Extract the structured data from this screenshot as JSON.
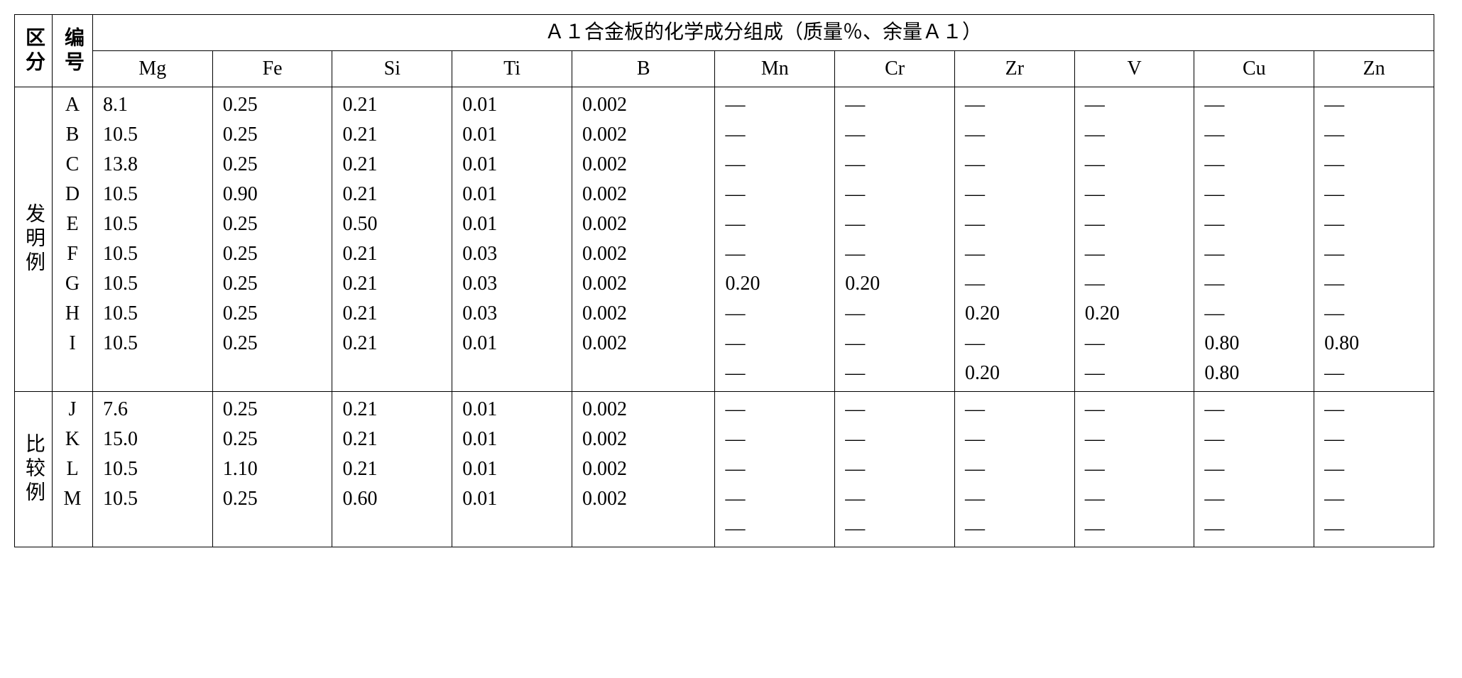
{
  "header": {
    "col1": "区分",
    "col2": "编号",
    "title": "Ａ１合金板的化学成分组成（质量％、余量Ａ１）",
    "subs": [
      "Mg",
      "Fe",
      "Si",
      "Ti",
      "B",
      "Mn",
      "Cr",
      "Zr",
      "V",
      "Cu",
      "Zn"
    ]
  },
  "groups": [
    {
      "label": "发明例",
      "rows": [
        {
          "id": "A",
          "cells": [
            "8.1",
            "0.25",
            "0.21",
            "0.01",
            "0.002",
            "—",
            "—",
            "—",
            "—",
            "—",
            "—"
          ]
        },
        {
          "id": "B",
          "cells": [
            "10.5",
            "0.25",
            "0.21",
            "0.01",
            "0.002",
            "—",
            "—",
            "—",
            "—",
            "—",
            "—"
          ]
        },
        {
          "id": "C",
          "cells": [
            "13.8",
            "0.25",
            "0.21",
            "0.01",
            "0.002",
            "—",
            "—",
            "—",
            "—",
            "—",
            "—"
          ]
        },
        {
          "id": "D",
          "cells": [
            "10.5",
            "0.90",
            "0.21",
            "0.01",
            "0.002",
            "—",
            "—",
            "—",
            "—",
            "—",
            "—"
          ]
        },
        {
          "id": "E",
          "cells": [
            "10.5",
            "0.25",
            "0.50",
            "0.01",
            "0.002",
            "—",
            "—",
            "—",
            "—",
            "—",
            "—"
          ]
        },
        {
          "id": "F",
          "cells": [
            "10.5",
            "0.25",
            "0.21",
            "0.03",
            "0.002",
            "—",
            "—",
            "—",
            "—",
            "—",
            "—"
          ]
        },
        {
          "id": "G",
          "cells": [
            "10.5",
            "0.25",
            "0.21",
            "0.03",
            "0.002",
            "0.20",
            "0.20",
            "—",
            "—",
            "—",
            "—"
          ]
        },
        {
          "id": "H",
          "cells": [
            "10.5",
            "0.25",
            "0.21",
            "0.03",
            "0.002",
            "—",
            "—",
            "0.20",
            "0.20",
            "—",
            "—"
          ]
        },
        {
          "id": "I",
          "cells": [
            "10.5",
            "0.25",
            "0.21",
            "0.01",
            "0.002",
            "—",
            "—",
            "—",
            "—",
            "0.80",
            "0.80"
          ]
        },
        {
          "id": "",
          "cells": [
            "",
            "",
            "",
            "",
            "",
            "—",
            "—",
            "0.20",
            "—",
            "0.80",
            "—"
          ]
        }
      ]
    },
    {
      "label": "比较例",
      "rows": [
        {
          "id": "J",
          "cells": [
            "7.6",
            "0.25",
            "0.21",
            "0.01",
            "0.002",
            "—",
            "—",
            "—",
            "—",
            "—",
            "—"
          ]
        },
        {
          "id": "K",
          "cells": [
            "15.0",
            "0.25",
            "0.21",
            "0.01",
            "0.002",
            "—",
            "—",
            "—",
            "—",
            "—",
            "—"
          ]
        },
        {
          "id": "L",
          "cells": [
            "10.5",
            "1.10",
            "0.21",
            "0.01",
            "0.002",
            "—",
            "—",
            "—",
            "—",
            "—",
            "—"
          ]
        },
        {
          "id": "M",
          "cells": [
            "10.5",
            "0.25",
            "0.60",
            "0.01",
            "0.002",
            "—",
            "—",
            "—",
            "—",
            "—",
            "—"
          ]
        },
        {
          "id": "",
          "cells": [
            "",
            "",
            "",
            "",
            "",
            "—",
            "—",
            "—",
            "—",
            "—",
            "—"
          ]
        }
      ]
    }
  ],
  "style": {
    "font_size_pt": 28,
    "border_color": "#000000",
    "background": "#ffffff"
  }
}
